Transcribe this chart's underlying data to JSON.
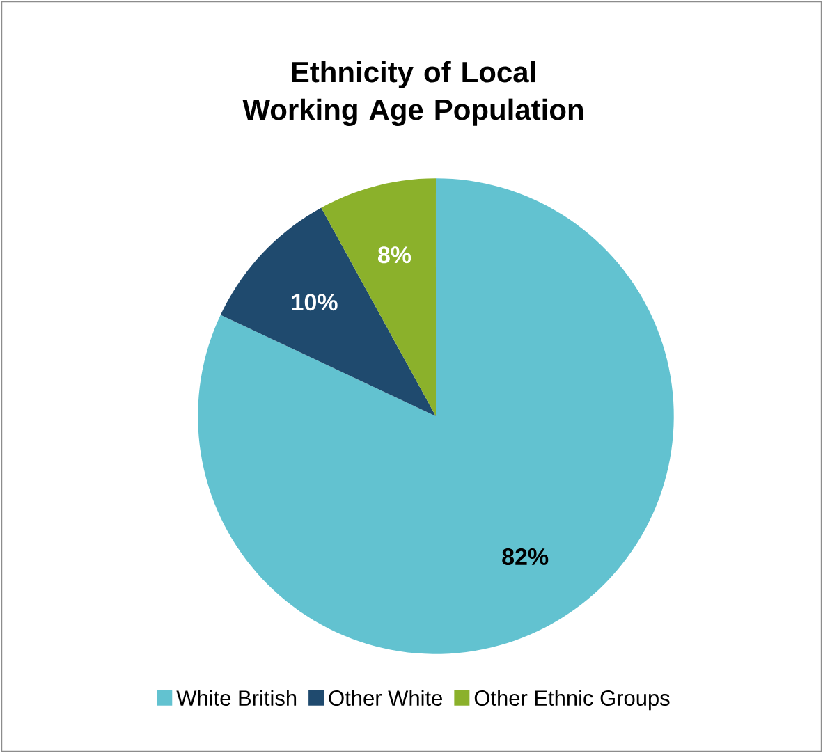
{
  "chart_data": {
    "type": "pie",
    "title": "Ethnicity of Local Working Age Population",
    "categories": [
      "White British",
      "Other White",
      "Other Ethnic Groups"
    ],
    "values": [
      82,
      10,
      8
    ],
    "colors": [
      "#62c2d0",
      "#1f4a6e",
      "#8bb12b"
    ],
    "value_labels": [
      "82%",
      "10%",
      "8%"
    ],
    "legend": "bottom"
  }
}
